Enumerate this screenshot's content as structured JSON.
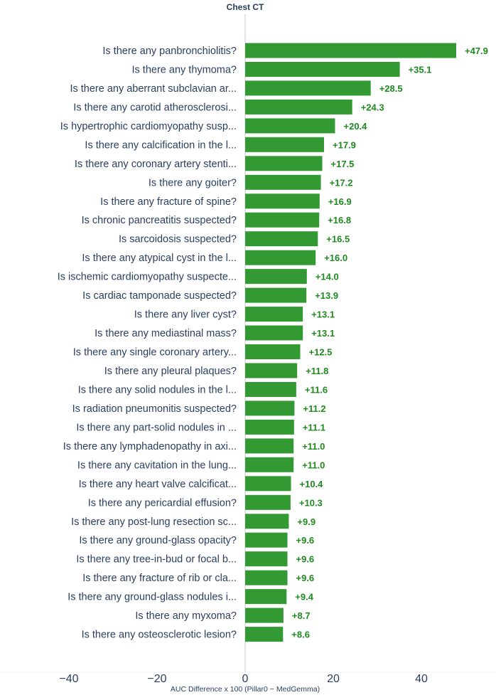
{
  "chart_data": {
    "type": "bar",
    "orientation": "horizontal",
    "title": "Chest CT",
    "xlabel": "AUC Difference x 100 (Pillar0 − MedGemma)",
    "ylabel": "",
    "xlim": [
      -40,
      50
    ],
    "xticks": [
      -40,
      -20,
      0,
      20,
      40
    ],
    "xtick_labels": [
      "−40",
      "−20",
      "0",
      "20",
      "40"
    ],
    "grid": false,
    "bar_color": "#339933",
    "value_label_color": "#1e8a1e",
    "categories": [
      "Is there any panbronchiolitis?",
      "Is there any thymoma?",
      "Is there any aberrant subclavian ar...",
      "Is there any carotid atherosclerosi...",
      "Is hypertrophic cardiomyopathy susp...",
      "Is there any calcification in the l...",
      "Is there any coronary artery stenti...",
      "Is there any goiter?",
      "Is there any fracture of spine?",
      "Is chronic pancreatitis suspected?",
      "Is sarcoidosis suspected?",
      "Is there any atypical cyst in the l...",
      "Is ischemic cardiomyopathy suspecte...",
      "Is cardiac tamponade suspected?",
      "Is there any liver cyst?",
      "Is there any mediastinal mass?",
      "Is there any single coronary artery...",
      "Is there any pleural plaques?",
      "Is there any solid nodules in the l...",
      "Is radiation pneumonitis suspected?",
      "Is there any part-solid nodules in ...",
      "Is there any lymphadenopathy in axi...",
      "Is there any cavitation in the lung...",
      "Is there any heart valve calcificat...",
      "Is there any pericardial effusion?",
      "Is there any post-lung resection sc...",
      "Is there any ground-glass opacity?",
      "Is there any tree-in-bud or focal b...",
      "Is there any fracture of rib or cla...",
      "Is there any ground-glass nodules i...",
      "Is there any myxoma?",
      "Is there any osteosclerotic lesion?"
    ],
    "values": [
      47.9,
      35.1,
      28.5,
      24.3,
      20.4,
      17.9,
      17.5,
      17.2,
      16.9,
      16.8,
      16.5,
      16.0,
      14.0,
      13.9,
      13.1,
      13.1,
      12.5,
      11.8,
      11.6,
      11.2,
      11.1,
      11.0,
      11.0,
      10.4,
      10.3,
      9.9,
      9.6,
      9.6,
      9.6,
      9.4,
      8.7,
      8.6
    ],
    "value_labels": [
      "+47.9",
      "+35.1",
      "+28.5",
      "+24.3",
      "+20.4",
      "+17.9",
      "+17.5",
      "+17.2",
      "+16.9",
      "+16.8",
      "+16.5",
      "+16.0",
      "+14.0",
      "+13.9",
      "+13.1",
      "+13.1",
      "+12.5",
      "+11.8",
      "+11.6",
      "+11.2",
      "+11.1",
      "+11.0",
      "+11.0",
      "+10.4",
      "+10.3",
      "+9.9",
      "+9.6",
      "+9.6",
      "+9.6",
      "+9.4",
      "+8.7",
      "+8.6"
    ]
  }
}
